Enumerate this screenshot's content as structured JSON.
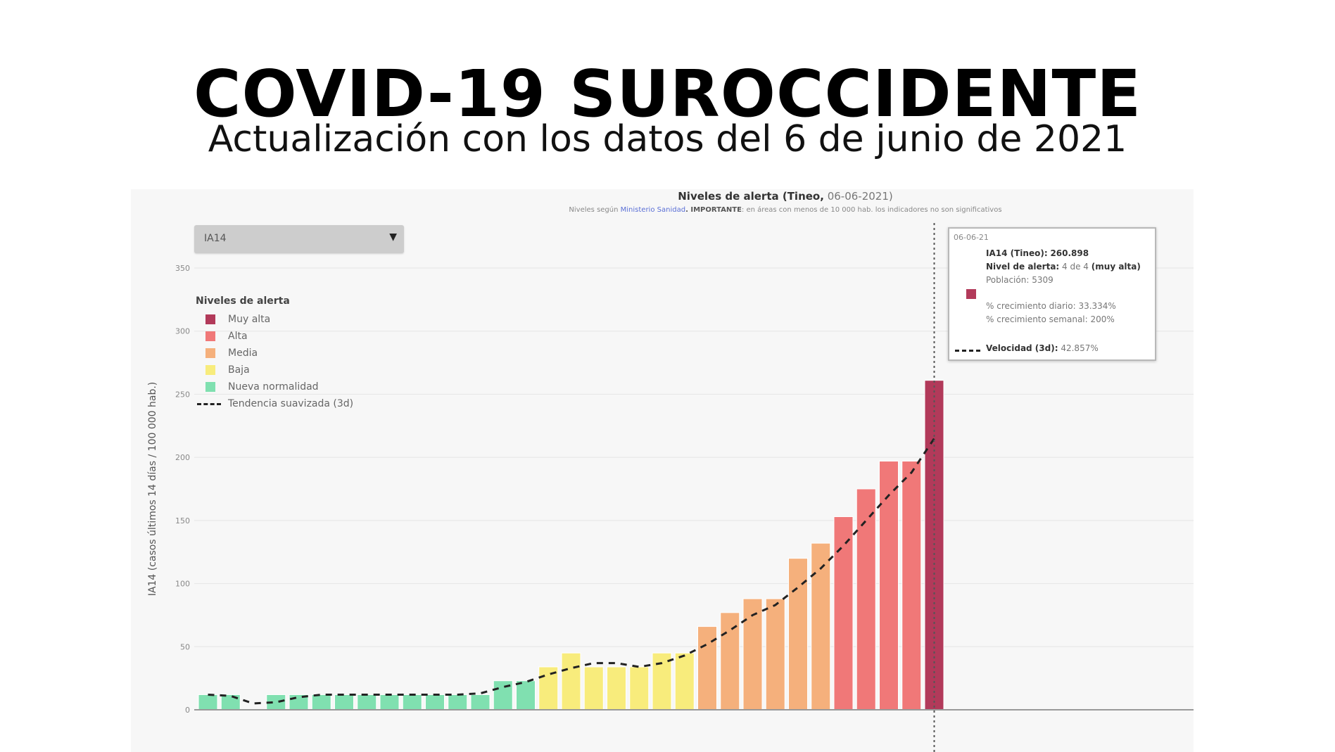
{
  "header": {
    "title": "COVID-19 SUROCCIDENTE",
    "subtitle": "Actualización con los datos del 6 de junio de 2021"
  },
  "chart_header": {
    "title_bold": "Niveles de alerta (Tineo,",
    "title_date": " 06-06-2021)",
    "note_prefix": "Niveles según ",
    "note_link": "Ministerio Sanidad",
    "note_bold": ". IMPORTANTE",
    "note_rest": ": en áreas con menos de 10 000 hab. los indicadores no son significativos"
  },
  "dropdown": {
    "value": "IA14",
    "caret": "▼"
  },
  "legend": {
    "title": "Niveles de alerta",
    "items": [
      {
        "label": "Muy alta",
        "color": "#b23a5a"
      },
      {
        "label": "Alta",
        "color": "#f07878"
      },
      {
        "label": "Media",
        "color": "#f5b07c"
      },
      {
        "label": "Baja",
        "color": "#f8ec7c"
      },
      {
        "label": "Nueva normalidad",
        "color": "#80e0b0"
      }
    ],
    "trend_label": "Tendencia suavizada (3d)"
  },
  "tooltip": {
    "date": "06-06-21",
    "ia14_label": "IA14 (Tineo):",
    "ia14_value": "260.898",
    "level_label": "Nivel de alerta:",
    "level_value": "4 de 4",
    "level_name": "(muy alta)",
    "population": "Población: 5309",
    "daily_growth": "% crecimiento diario: 33.334%",
    "weekly_growth": "% crecimiento semanal: 200%",
    "velocity_label": "Velocidad (3d):",
    "velocity_value": "42.857%",
    "swatch_color": "#b23a5a"
  },
  "chart_data": {
    "type": "bar",
    "title": "Niveles de alerta (Tineo, 06-06-2021)",
    "ylabel": "IA14 (casos últimos 14 días / 100 000 hab.)",
    "ylim": [
      0,
      350
    ],
    "yticks": [
      0,
      50,
      100,
      150,
      200,
      250,
      300,
      350
    ],
    "grid": true,
    "legend_position": "top-left",
    "values": [
      12,
      12,
      0,
      12,
      12,
      12,
      12,
      12,
      12,
      12,
      12,
      12,
      12,
      23,
      23,
      34,
      45,
      34,
      34,
      34,
      45,
      45,
      66,
      77,
      88,
      88,
      120,
      132,
      153,
      175,
      197,
      197,
      261
    ],
    "levels": [
      "nn",
      "nn",
      "nn",
      "nn",
      "nn",
      "nn",
      "nn",
      "nn",
      "nn",
      "nn",
      "nn",
      "nn",
      "nn",
      "nn",
      "nn",
      "baja",
      "baja",
      "baja",
      "baja",
      "baja",
      "baja",
      "baja",
      "media",
      "media",
      "media",
      "media",
      "media",
      "media",
      "alta",
      "alta",
      "alta",
      "alta",
      "muyalta"
    ],
    "series": [
      {
        "name": "Tendencia suavizada (3d)",
        "values": [
          12,
          11,
          5,
          6,
          10,
          12,
          12,
          12,
          12,
          12,
          12,
          12,
          13,
          18,
          22,
          28,
          33,
          37,
          37,
          34,
          37,
          43,
          52,
          63,
          75,
          83,
          97,
          112,
          130,
          150,
          170,
          188,
          215
        ]
      }
    ],
    "colors": {
      "muyalta": "#b23a5a",
      "alta": "#f07878",
      "media": "#f5b07c",
      "baja": "#f8ec7c",
      "nn": "#80e0b0"
    }
  }
}
